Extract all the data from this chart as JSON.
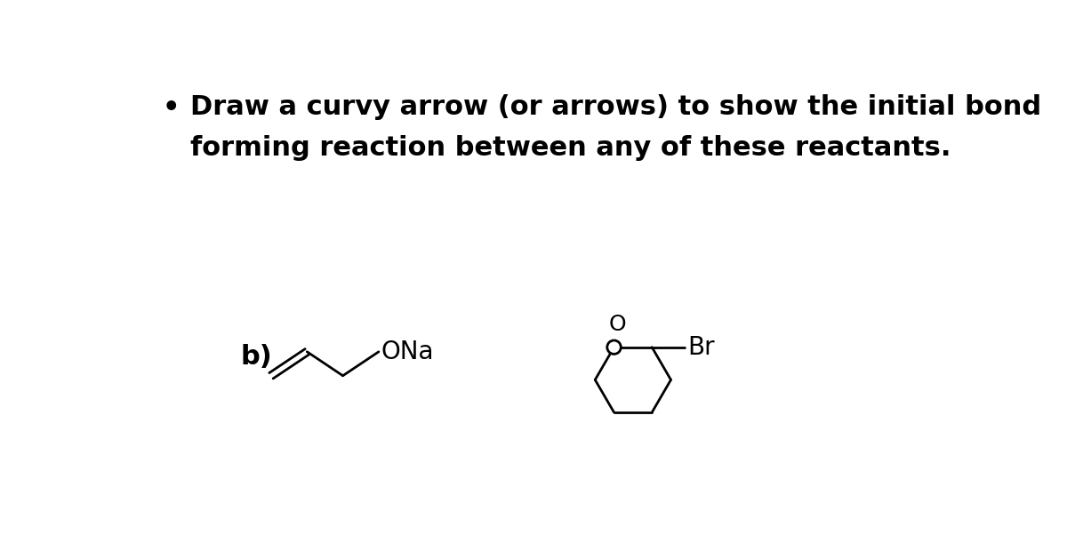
{
  "title_line1": "Draw a curvy arrow (or arrows) to show the initial bond",
  "title_line2": "forming reaction between any of these reactants.",
  "bullet": "•",
  "label_b": "b)",
  "ona_label": "ONa",
  "br_label": "Br",
  "o_label": "O",
  "bg_color": "#ffffff",
  "text_color": "#000000",
  "line_color": "#000000",
  "title_fontsize": 22,
  "label_fontsize": 22,
  "chem_fontsize": 20,
  "line_width": 2.0,
  "fig_width": 12.0,
  "fig_height": 6.29
}
